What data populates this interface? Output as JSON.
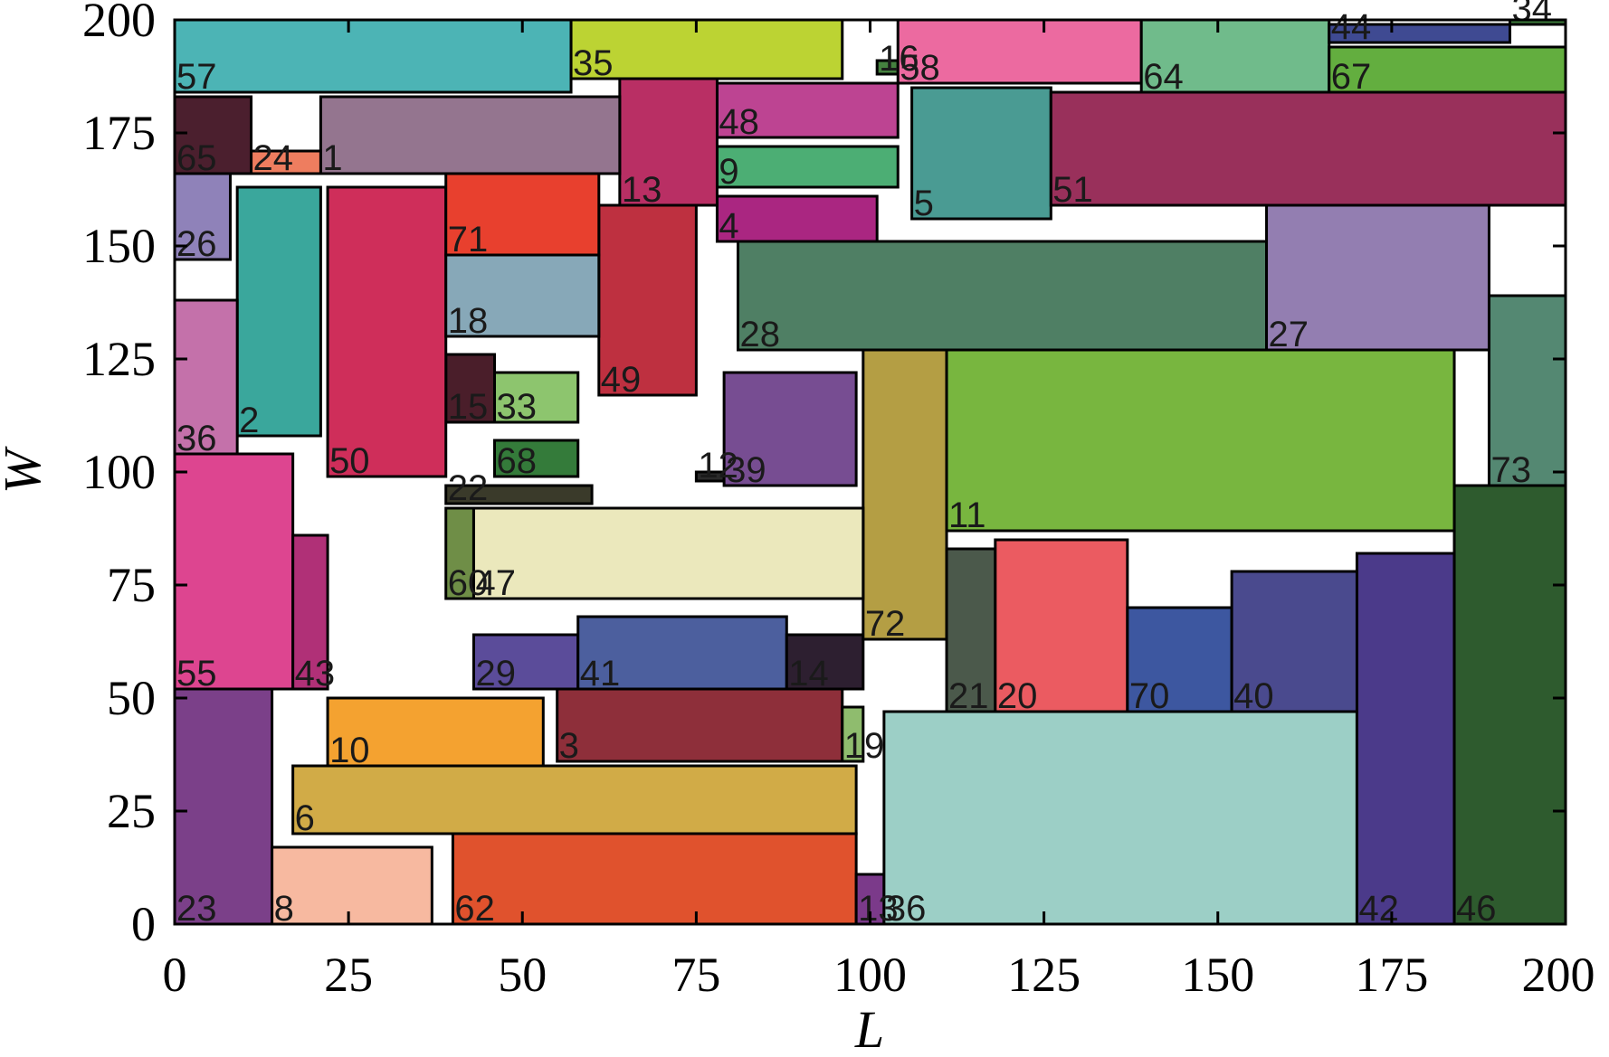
{
  "chart_data": {
    "type": "rectangle-packing",
    "xlabel": "L",
    "ylabel": "W",
    "xlim": [
      0,
      200
    ],
    "ylim": [
      0,
      200
    ],
    "xticks": [
      0,
      25,
      50,
      75,
      100,
      125,
      150,
      175,
      200
    ],
    "yticks": [
      0,
      25,
      50,
      75,
      100,
      125,
      150,
      175,
      200
    ],
    "grid": false,
    "rectangles": [
      {
        "id": "23",
        "x0": 0,
        "y0": 0,
        "x1": 14,
        "y1": 52,
        "color": "#7b4089"
      },
      {
        "id": "8",
        "x0": 14,
        "y0": 0,
        "x1": 37,
        "y1": 17,
        "color": "#f7b9a0"
      },
      {
        "id": "62",
        "x0": 40,
        "y0": 0,
        "x1": 98,
        "y1": 20,
        "color": "#e0522d"
      },
      {
        "id": "6",
        "x0": 17,
        "y0": 20,
        "x1": 98,
        "y1": 35,
        "color": "#d1ab47"
      },
      {
        "id": "10",
        "x0": 22,
        "y0": 35,
        "x1": 53,
        "y1": 50,
        "color": "#f4a230"
      },
      {
        "id": "3",
        "x0": 55,
        "y0": 36,
        "x1": 96,
        "y1": 52,
        "color": "#8e2f3a"
      },
      {
        "id": "19",
        "x0": 96,
        "y0": 36,
        "x1": 99,
        "y1": 48,
        "color": "#8fbc6e"
      },
      {
        "id": "13",
        "x0": 98,
        "y0": 0,
        "x1": 102,
        "y1": 11,
        "color": "#7b3a8a"
      },
      {
        "id": "36",
        "x0": 102,
        "y0": 0,
        "x1": 170,
        "y1": 47,
        "color": "#9ccfc6"
      },
      {
        "id": "42",
        "x0": 170,
        "y0": 0,
        "x1": 184,
        "y1": 82,
        "color": "#4b3a8a"
      },
      {
        "id": "46",
        "x0": 184,
        "y0": 0,
        "x1": 200,
        "y1": 97,
        "color": "#2e5b2e"
      },
      {
        "id": "55",
        "x0": 0,
        "y0": 52,
        "x1": 17,
        "y1": 104,
        "color": "#dd4590"
      },
      {
        "id": "43",
        "x0": 17,
        "y0": 52,
        "x1": 22,
        "y1": 86,
        "color": "#b03077"
      },
      {
        "id": "29",
        "x0": 43,
        "y0": 52,
        "x1": 58,
        "y1": 64,
        "color": "#5b4c9a"
      },
      {
        "id": "41",
        "x0": 58,
        "y0": 52,
        "x1": 88,
        "y1": 68,
        "color": "#4c5f9e"
      },
      {
        "id": "14",
        "x0": 88,
        "y0": 52,
        "x1": 99,
        "y1": 64,
        "color": "#2d1f30"
      },
      {
        "id": "72",
        "x0": 99,
        "y0": 63,
        "x1": 111,
        "y1": 127,
        "color": "#b49e44"
      },
      {
        "id": "21",
        "x0": 111,
        "y0": 47,
        "x1": 118,
        "y1": 83,
        "color": "#4b594b"
      },
      {
        "id": "20",
        "x0": 118,
        "y0": 47,
        "x1": 137,
        "y1": 85,
        "color": "#eb5b61"
      },
      {
        "id": "70",
        "x0": 137,
        "y0": 47,
        "x1": 152,
        "y1": 70,
        "color": "#3d57a0"
      },
      {
        "id": "40",
        "x0": 152,
        "y0": 47,
        "x1": 170,
        "y1": 78,
        "color": "#4a4a8e"
      },
      {
        "id": "60",
        "x0": 39,
        "y0": 72,
        "x1": 43,
        "y1": 92,
        "color": "#6f8e47"
      },
      {
        "id": "47",
        "x0": 43,
        "y0": 72,
        "x1": 99,
        "y1": 92,
        "color": "#ebe8bc"
      },
      {
        "id": "22",
        "x0": 39,
        "y0": 93,
        "x1": 60,
        "y1": 97,
        "color": "#3a3a2a"
      },
      {
        "id": "68",
        "x0": 46,
        "y0": 99,
        "x1": 58,
        "y1": 107,
        "color": "#347b3a"
      },
      {
        "id": "33",
        "x0": 46,
        "y0": 111,
        "x1": 58,
        "y1": 122,
        "color": "#8dc56e"
      },
      {
        "id": "15",
        "x0": 39,
        "y0": 111,
        "x1": 46,
        "y1": 126,
        "color": "#4a1e2a"
      },
      {
        "id": "11",
        "x0": 111,
        "y0": 87,
        "x1": 184,
        "y1": 127,
        "color": "#78b63f"
      },
      {
        "id": "73",
        "x0": 189,
        "y0": 97,
        "x1": 200,
        "y1": 139,
        "color": "#548872"
      },
      {
        "id": "12",
        "x0": 75,
        "y0": 98,
        "x1": 79,
        "y1": 100,
        "color": "#2a2a2a"
      },
      {
        "id": "39",
        "x0": 79,
        "y0": 97,
        "x1": 98,
        "y1": 122,
        "color": "#774d92"
      },
      {
        "id": "50",
        "x0": 22,
        "y0": 99,
        "x1": 39,
        "y1": 163,
        "color": "#cf2e5a"
      },
      {
        "id": "2",
        "x0": 9,
        "y0": 108,
        "x1": 21,
        "y1": 163,
        "color": "#3aa79c"
      },
      {
        "id": "36b",
        "label": "36",
        "x0": 0,
        "y0": 104,
        "x1": 9,
        "y1": 138,
        "color": "#c471aa"
      },
      {
        "id": "49",
        "x0": 61,
        "y0": 117,
        "x1": 75,
        "y1": 159,
        "color": "#be3040"
      },
      {
        "id": "18",
        "x0": 39,
        "y0": 130,
        "x1": 61,
        "y1": 148,
        "color": "#87a8b8"
      },
      {
        "id": "71",
        "x0": 39,
        "y0": 148,
        "x1": 61,
        "y1": 166,
        "color": "#e8402e"
      },
      {
        "id": "26",
        "x0": 0,
        "y0": 147,
        "x1": 8,
        "y1": 166,
        "color": "#8f82b9"
      },
      {
        "id": "28",
        "x0": 81,
        "y0": 127,
        "x1": 157,
        "y1": 151,
        "color": "#4f7f64"
      },
      {
        "id": "27",
        "x0": 157,
        "y0": 127,
        "x1": 189,
        "y1": 159,
        "color": "#937eb1"
      },
      {
        "id": "4",
        "x0": 78,
        "y0": 151,
        "x1": 101,
        "y1": 161,
        "color": "#aa2681"
      },
      {
        "id": "9",
        "x0": 78,
        "y0": 163,
        "x1": 104,
        "y1": 172,
        "color": "#4cae74"
      },
      {
        "id": "5",
        "x0": 106,
        "y0": 156,
        "x1": 126,
        "y1": 185,
        "color": "#4a9b93"
      },
      {
        "id": "51",
        "x0": 126,
        "y0": 159,
        "x1": 200,
        "y1": 184,
        "color": "#99305b"
      },
      {
        "id": "48",
        "x0": 78,
        "y0": 174,
        "x1": 104,
        "y1": 186,
        "color": "#bd4492"
      },
      {
        "id": "13b",
        "label": "13",
        "x0": 64,
        "y0": 159,
        "x1": 78,
        "y1": 188,
        "color": "#b92f64"
      },
      {
        "id": "1",
        "x0": 21,
        "y0": 166,
        "x1": 64,
        "y1": 183,
        "color": "#94758f"
      },
      {
        "id": "24",
        "x0": 11,
        "y0": 166,
        "x1": 21,
        "y1": 171,
        "color": "#ee7d5f"
      },
      {
        "id": "65",
        "x0": 0,
        "y0": 166,
        "x1": 11,
        "y1": 183,
        "color": "#4b1f2e"
      },
      {
        "id": "57",
        "x0": 0,
        "y0": 184,
        "x1": 57,
        "y1": 200,
        "color": "#4cb4b5"
      },
      {
        "id": "35",
        "x0": 57,
        "y0": 187,
        "x1": 96,
        "y1": 200,
        "color": "#bcd333"
      },
      {
        "id": "16",
        "x0": 101,
        "y0": 188,
        "x1": 104,
        "y1": 191,
        "color": "#45813f"
      },
      {
        "id": "58",
        "x0": 104,
        "y0": 186,
        "x1": 139,
        "y1": 200,
        "color": "#ec6aa0"
      },
      {
        "id": "64",
        "x0": 139,
        "y0": 184,
        "x1": 166,
        "y1": 200,
        "color": "#70bb8b"
      },
      {
        "id": "67",
        "x0": 166,
        "y0": 184,
        "x1": 200,
        "y1": 194,
        "color": "#63ae3f"
      },
      {
        "id": "44",
        "x0": 166,
        "y0": 195,
        "x1": 192,
        "y1": 199,
        "color": "#3f4a92"
      },
      {
        "id": "34",
        "x0": 192,
        "y0": 199,
        "x1": 200,
        "y1": 200,
        "color": "#3b7a3a"
      }
    ]
  }
}
